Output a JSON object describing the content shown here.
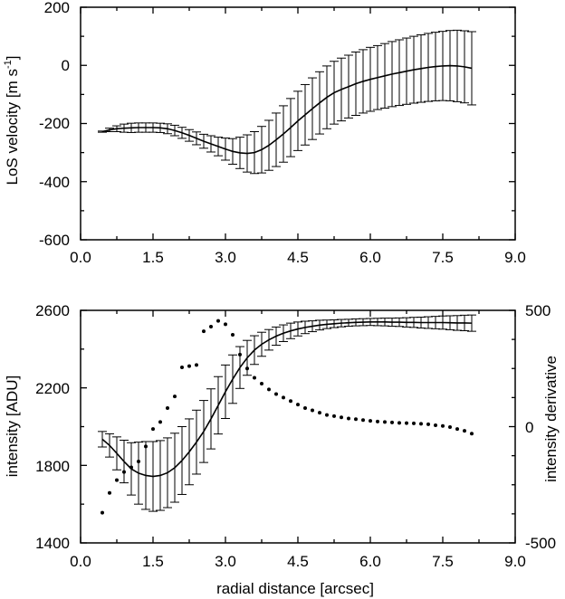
{
  "chart_data": [
    {
      "type": "line",
      "panel": "top",
      "xlabel": "",
      "ylabel": "LoS velocity [m s-1]",
      "ylabel_base": "LoS velocity [m s",
      "ylabel_sup": "-1",
      "ylabel_end": "]",
      "xlim": [
        0,
        9
      ],
      "ylim": [
        -600,
        200
      ],
      "grid": false,
      "error_bars": true,
      "x_ticks": [
        "0.0",
        "1.5",
        "3.0",
        "4.5",
        "6.0",
        "7.5",
        "9.0"
      ],
      "y_ticks": [
        "-600",
        "-400",
        "-200",
        "0",
        "200"
      ],
      "series": [
        {
          "x": [
            0.45,
            0.6,
            0.75,
            0.9,
            1.05,
            1.2,
            1.35,
            1.5,
            1.65,
            1.8,
            1.95,
            2.1,
            2.25,
            2.4,
            2.55,
            2.7,
            2.85,
            3.0,
            3.15,
            3.3,
            3.45,
            3.6,
            3.75,
            3.9,
            4.05,
            4.2,
            4.35,
            4.5,
            4.65,
            4.8,
            4.95,
            5.1,
            5.25,
            5.4,
            5.55,
            5.7,
            5.85,
            6.0,
            6.15,
            6.3,
            6.45,
            6.6,
            6.75,
            6.9,
            7.05,
            7.2,
            7.35,
            7.5,
            7.65,
            7.8,
            7.95,
            8.1
          ],
          "y": [
            -228,
            -222,
            -218,
            -216,
            -215,
            -214,
            -214,
            -214,
            -215,
            -218,
            -224,
            -232,
            -241,
            -251,
            -261,
            -270,
            -279,
            -288,
            -296,
            -301,
            -303,
            -300,
            -290,
            -275,
            -256,
            -236,
            -214,
            -191,
            -170,
            -149,
            -129,
            -110,
            -94,
            -83,
            -73,
            -63,
            -55,
            -48,
            -42,
            -36,
            -30,
            -25,
            -20,
            -15,
            -11,
            -7,
            -4,
            -2,
            -1,
            -2,
            -5,
            -10
          ],
          "err": [
            2,
            6,
            10,
            14,
            16,
            16,
            16,
            16,
            16,
            17,
            18,
            19,
            20,
            22,
            24,
            28,
            32,
            38,
            44,
            54,
            64,
            72,
            80,
            86,
            92,
            97,
            100,
            102,
            104,
            106,
            107,
            108,
            108,
            108,
            108,
            109,
            109,
            110,
            110,
            111,
            112,
            113,
            114,
            115,
            116,
            117,
            118,
            119,
            121,
            123,
            124,
            126
          ]
        }
      ]
    },
    {
      "type": "line",
      "panel": "bottom",
      "xlabel": "radial distance [arcsec]",
      "ylabel": "intensity [ADU]",
      "y2label": "intensity derivative",
      "xlim": [
        0,
        9
      ],
      "ylim": [
        1400,
        2600
      ],
      "y2lim": [
        -500,
        500
      ],
      "grid": false,
      "error_bars": true,
      "x_ticks": [
        "0.0",
        "1.5",
        "3.0",
        "4.5",
        "6.0",
        "7.5",
        "9.0"
      ],
      "y_ticks": [
        "1400",
        "1800",
        "2200",
        "2600"
      ],
      "y2_ticks": [
        "-500",
        "0",
        "500"
      ],
      "series": [
        {
          "axis": "left",
          "marker": "line",
          "x": [
            0.45,
            0.6,
            0.75,
            0.9,
            1.05,
            1.2,
            1.35,
            1.5,
            1.65,
            1.8,
            1.95,
            2.1,
            2.25,
            2.4,
            2.55,
            2.7,
            2.85,
            3.0,
            3.15,
            3.3,
            3.45,
            3.6,
            3.75,
            3.9,
            4.05,
            4.2,
            4.35,
            4.5,
            4.65,
            4.8,
            4.95,
            5.1,
            5.25,
            5.4,
            5.55,
            5.7,
            5.85,
            6.0,
            6.15,
            6.3,
            6.45,
            6.6,
            6.75,
            6.9,
            7.05,
            7.2,
            7.35,
            7.5,
            7.65,
            7.8,
            7.95,
            8.1
          ],
          "y": [
            1935,
            1903,
            1862,
            1820,
            1782,
            1760,
            1748,
            1743,
            1748,
            1762,
            1788,
            1825,
            1870,
            1920,
            1975,
            2040,
            2110,
            2180,
            2245,
            2305,
            2355,
            2395,
            2425,
            2448,
            2467,
            2482,
            2494,
            2504,
            2512,
            2518,
            2524,
            2528,
            2531,
            2534,
            2536,
            2538,
            2539,
            2540,
            2540,
            2540,
            2539,
            2539,
            2538,
            2538,
            2537,
            2537,
            2537,
            2537,
            2536,
            2535,
            2535,
            2534
          ],
          "err": [
            40,
            60,
            85,
            110,
            135,
            160,
            175,
            180,
            180,
            180,
            178,
            175,
            170,
            165,
            160,
            155,
            148,
            138,
            125,
            108,
            90,
            74,
            62,
            53,
            47,
            43,
            40,
            36,
            32,
            28,
            25,
            22,
            20,
            19,
            18,
            18,
            18,
            18,
            19,
            20,
            21,
            22,
            24,
            26,
            28,
            30,
            32,
            34,
            36,
            38,
            40,
            42
          ]
        },
        {
          "axis": "right",
          "marker": "dot",
          "x": [
            0.45,
            0.6,
            0.75,
            0.9,
            1.05,
            1.2,
            1.35,
            1.5,
            1.65,
            1.8,
            1.95,
            2.1,
            2.25,
            2.4,
            2.55,
            2.7,
            2.85,
            3.0,
            3.15,
            3.3,
            3.45,
            3.6,
            3.75,
            3.9,
            4.05,
            4.2,
            4.35,
            4.5,
            4.65,
            4.8,
            4.95,
            5.1,
            5.25,
            5.4,
            5.55,
            5.7,
            5.85,
            6.0,
            6.15,
            6.3,
            6.45,
            6.6,
            6.75,
            6.9,
            7.05,
            7.2,
            7.35,
            7.5,
            7.65,
            7.8,
            7.95,
            8.1
          ],
          "y": [
            -370,
            -285,
            -230,
            -195,
            -175,
            -150,
            -85,
            -10,
            20,
            80,
            130,
            255,
            260,
            265,
            410,
            430,
            455,
            440,
            395,
            310,
            250,
            210,
            185,
            160,
            140,
            125,
            110,
            95,
            80,
            70,
            60,
            50,
            45,
            40,
            35,
            32,
            28,
            25,
            22,
            20,
            18,
            16,
            15,
            14,
            12,
            10,
            6,
            3,
            -2,
            -10,
            -18,
            -30
          ]
        }
      ]
    }
  ]
}
